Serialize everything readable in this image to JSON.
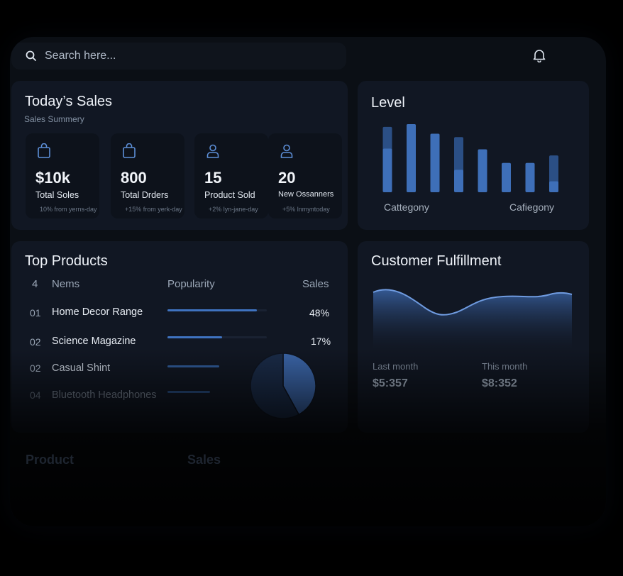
{
  "search": {
    "placeholder": "Search here..."
  },
  "todays_sales": {
    "title": "Today’s Sales",
    "subtitle": "Sales Summery",
    "stats": [
      {
        "icon": "shopping-bag-icon",
        "value": "$10k",
        "label": "Total Soles",
        "sub": "10% from yerns-day"
      },
      {
        "icon": "shopping-bag-icon",
        "value": "800",
        "label": "Total Drders",
        "sub": "+15% from yerk-day"
      },
      {
        "icon": "user-icon",
        "value": "15",
        "label": "Product Sold",
        "sub": "+2% lyn-jane-day"
      },
      {
        "icon": "user-icon",
        "value": "20",
        "label": "New Ossanners",
        "sub": "+5% lnmyntoday"
      }
    ]
  },
  "level": {
    "title": "Level",
    "category_left": "Cattegony",
    "category_right": "Cafiegony",
    "chart_data": {
      "type": "bar",
      "values": [
        0.96,
        1.0,
        0.86,
        0.81,
        0.63,
        0.43,
        0.43,
        0.54
      ],
      "highlight": [
        0.64,
        1.0,
        0.86,
        0.33,
        0.63,
        0.43,
        0.43,
        0.16
      ],
      "colors": {
        "bar": "#3e6fb8",
        "dim": "#2b4f85"
      }
    }
  },
  "top_products": {
    "title": "Top Products",
    "headers": {
      "num": "4",
      "name": "Nems",
      "popularity": "Popularity",
      "sales": "Sales"
    },
    "rows": [
      {
        "num": "01",
        "name": "Home Decor Range",
        "popularity": 0.9,
        "sales": "48%"
      },
      {
        "num": "02",
        "name": "Science Magazine",
        "popularity": 0.55,
        "sales": "17%"
      },
      {
        "num": "02",
        "name": "Casual Shint",
        "popularity": 0.52,
        "sales": ""
      },
      {
        "num": "04",
        "name": "Bluetooth Headphones",
        "popularity": 0.43,
        "sales": ""
      }
    ],
    "pie": [
      0.42,
      0.58
    ]
  },
  "customer_fulfillment": {
    "title": "Customer Fulfillment",
    "last_label": "Last month",
    "last_value": "$5:357",
    "this_label": "This month",
    "this_value": "$8:352"
  },
  "bottom": {
    "col1": "Product",
    "col2": "Sales"
  }
}
